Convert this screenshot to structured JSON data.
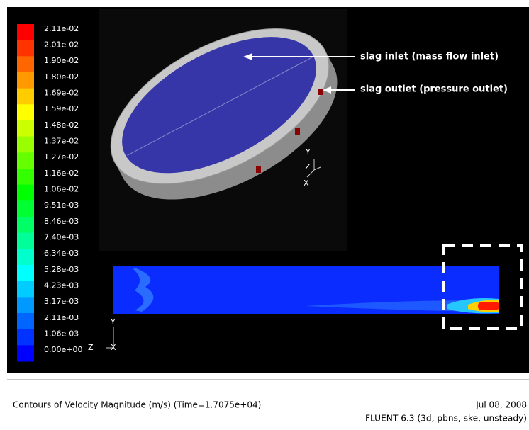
{
  "colorbar": {
    "labels": [
      "2.11e-02",
      "2.01e-02",
      "1.90e-02",
      "1.80e-02",
      "1.69e-02",
      "1.59e-02",
      "1.48e-02",
      "1.37e-02",
      "1.27e-02",
      "1.16e-02",
      "1.06e-02",
      "9.51e-03",
      "8.46e-03",
      "7.40e-03",
      "6.34e-03",
      "5.28e-03",
      "4.23e-03",
      "3.17e-03",
      "2.11e-03",
      "1.06e-03",
      "0.00e+00"
    ]
  },
  "annotations": {
    "inlet": "slag inlet (mass flow inlet)",
    "outlet": "slag outlet (pressure outlet)"
  },
  "axes_top": {
    "y": "Y",
    "z": "Z",
    "x": "X"
  },
  "axes_bottom": {
    "y": "Y",
    "z": "Z",
    "x": "X"
  },
  "footer": {
    "title": "Contours of Velocity Magnitude (m/s)  (Time=1.7075e+04)",
    "date": "Jul 08, 2008",
    "solver": "FLUENT 6.3 (3d, pbns, ske, unsteady)"
  }
}
